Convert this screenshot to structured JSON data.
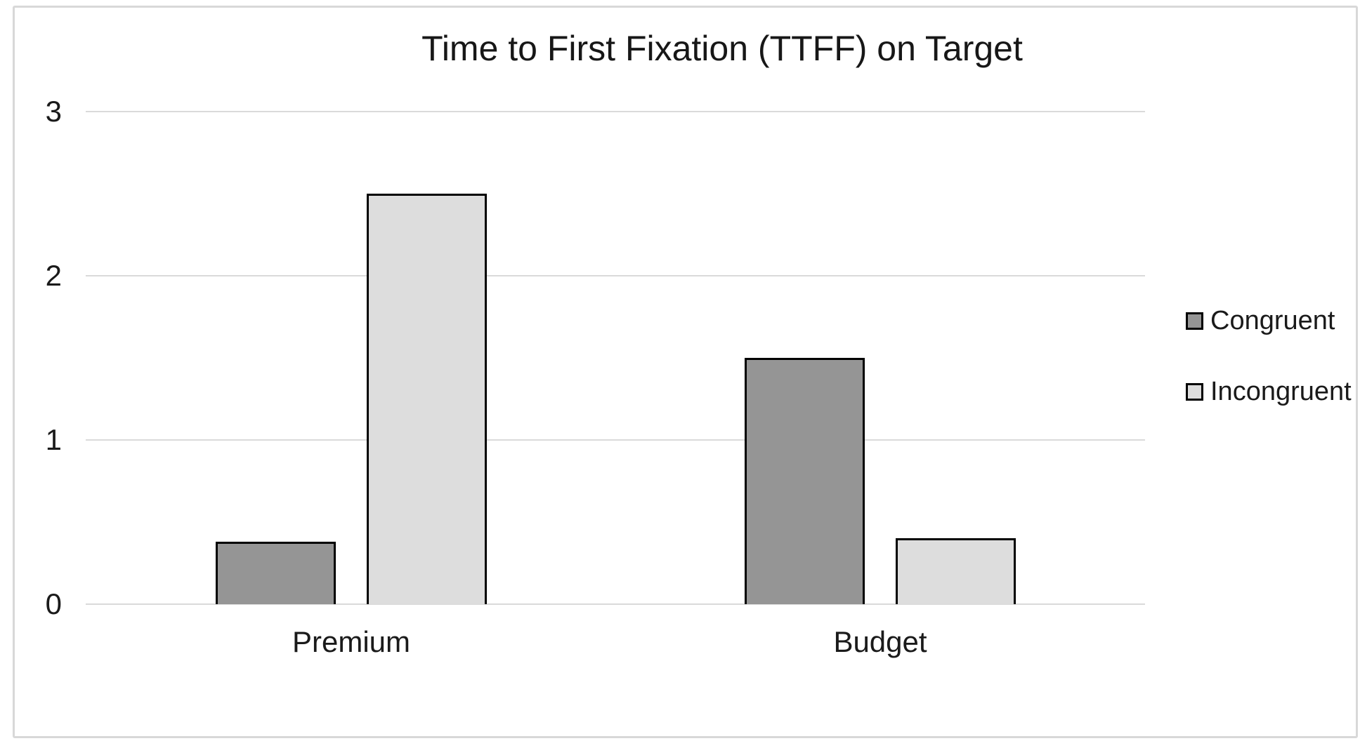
{
  "chart_data": {
    "type": "bar",
    "title": "Time to First Fixation (TTFF) on Target",
    "categories": [
      "Premium",
      "Budget"
    ],
    "series": [
      {
        "name": "Congruent",
        "values": [
          0.38,
          1.5
        ],
        "fill": "#959595"
      },
      {
        "name": "Incongruent",
        "values": [
          2.5,
          0.4
        ],
        "fill": "#DDDDDD"
      }
    ],
    "xlabel": "",
    "ylabel": "",
    "ylim": [
      0,
      3
    ],
    "yticks": [
      0,
      1,
      2,
      3
    ],
    "grid": "horizontal",
    "gridline_color": "#DADADA",
    "bar_border_color": "#000000",
    "legend_position": "right",
    "background_color": "#FFFFFF",
    "frame_border_color": "#D8D8D8"
  }
}
